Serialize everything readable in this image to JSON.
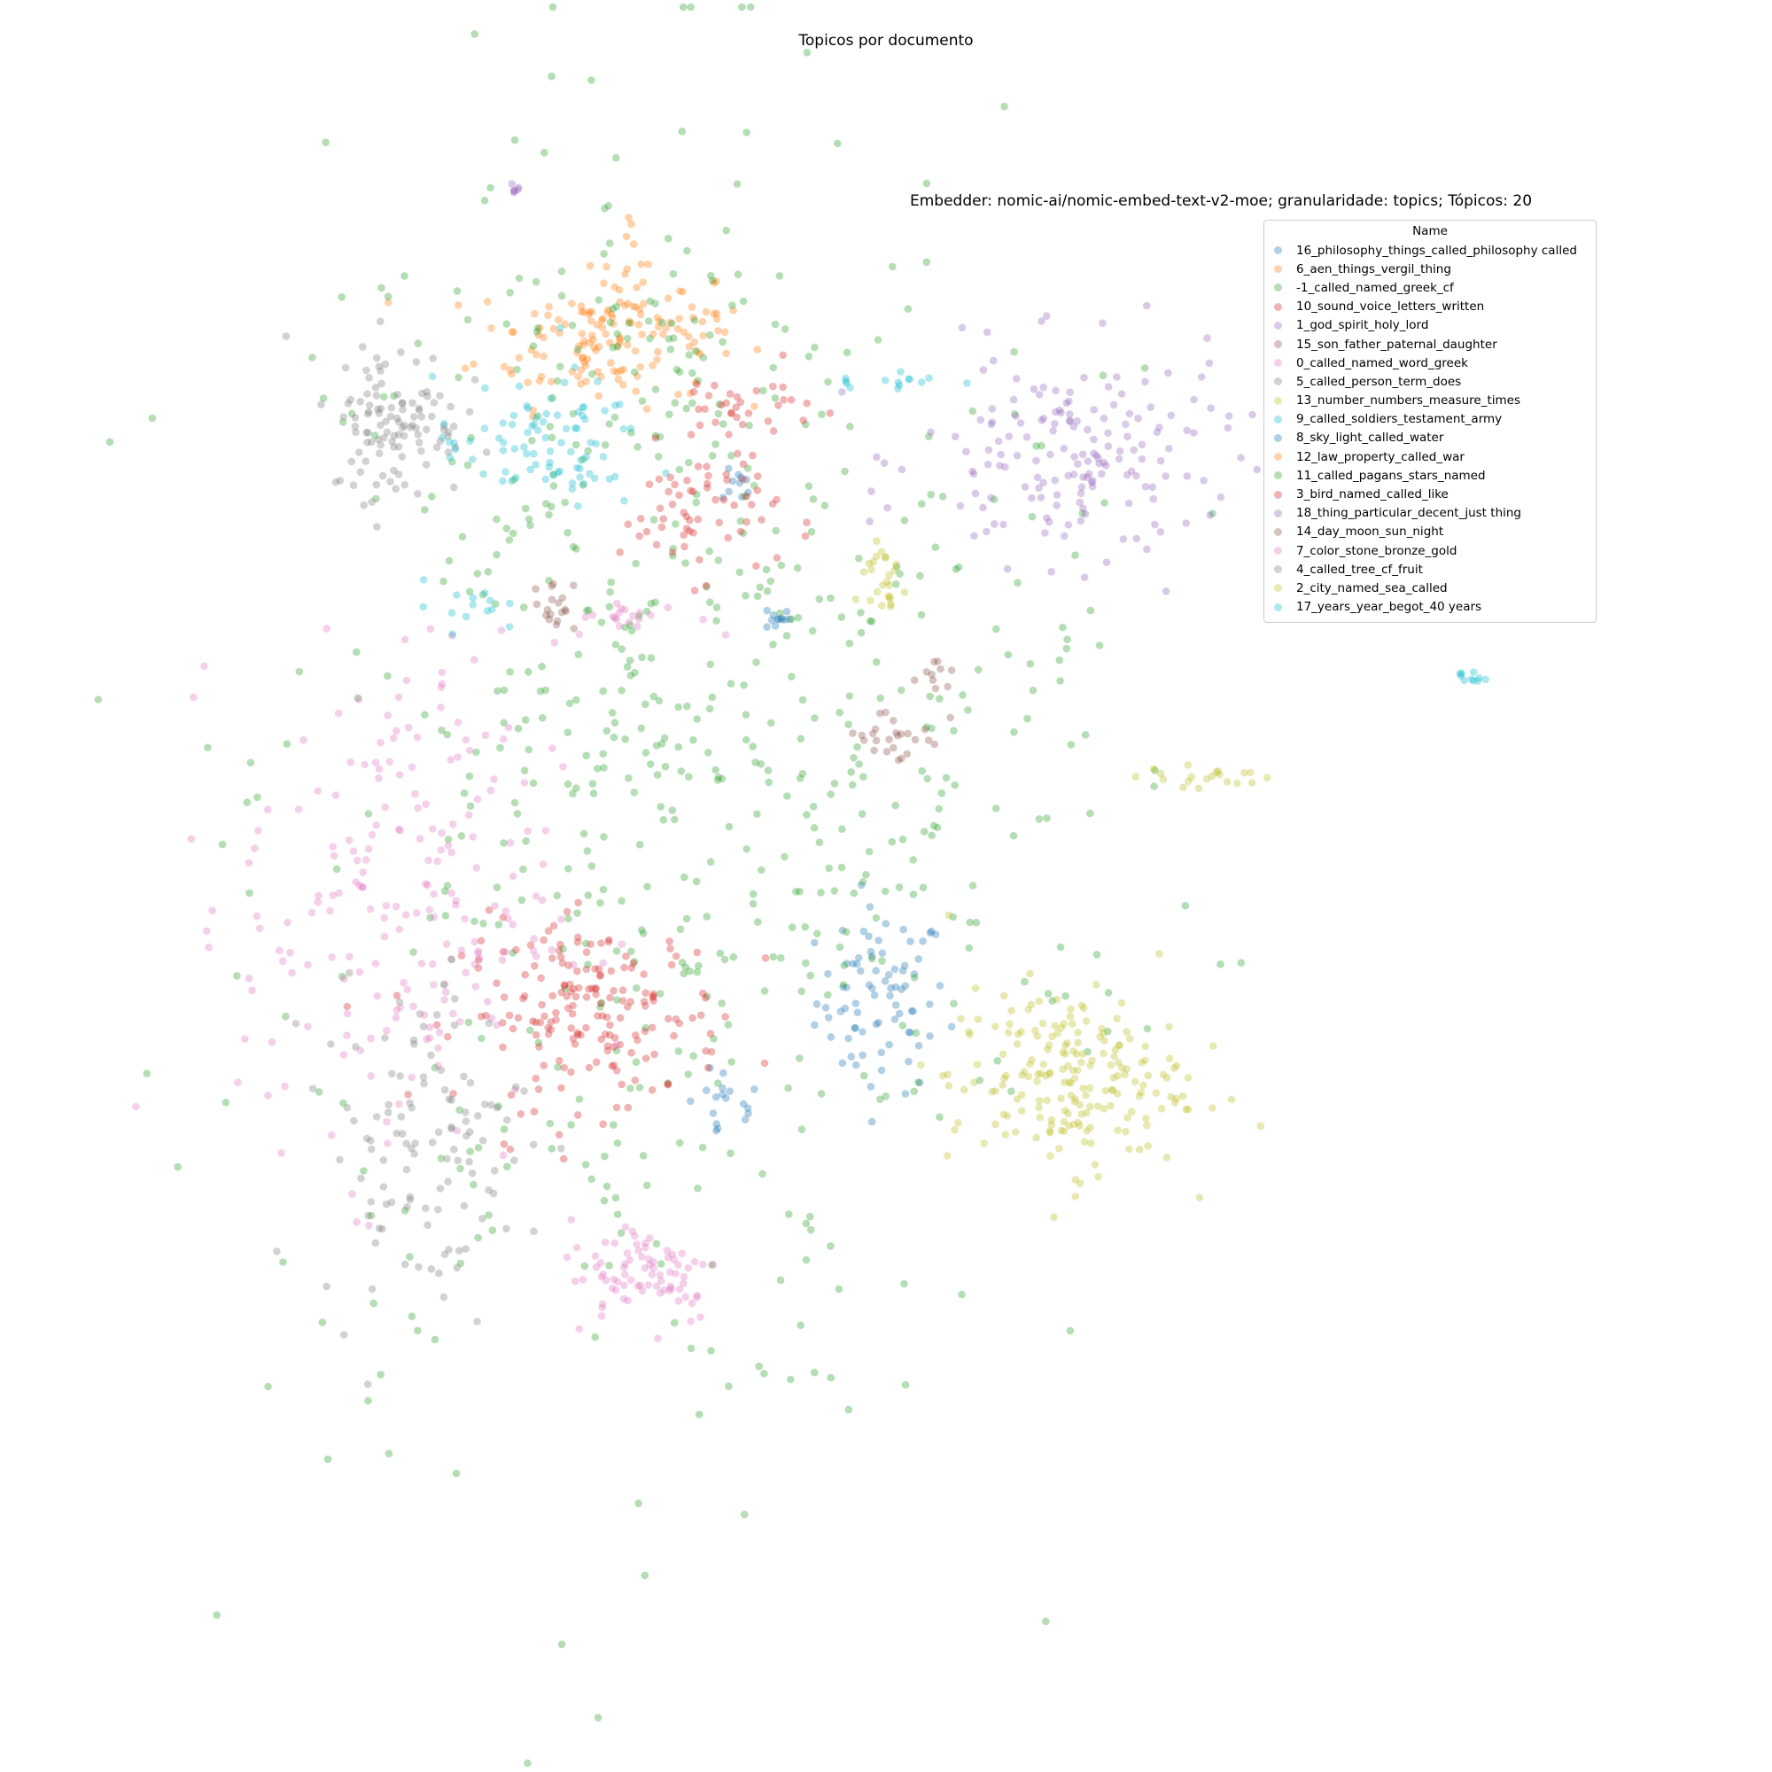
{
  "figure": {
    "suptitle": "Topicos por documento"
  },
  "chart_data": {
    "type": "scatter",
    "title": "Embedder: nomic-ai/nomic-embed-text-v2-moe; granularidade: topics; Tópicos: 20",
    "xlabel": "",
    "ylabel": "",
    "axes_visible": false,
    "grid": false,
    "legend_title": "Name",
    "legend_placement": "upper-right",
    "point_opacity": 0.35,
    "xlim": [
      0,
      100
    ],
    "ylim": [
      0,
      100
    ],
    "series": [
      {
        "name": "16_philosophy_things_called_philosophy called",
        "color": "#1f77b4",
        "clusters": [
          {
            "x": 47,
            "y": 43,
            "sx": 2.5,
            "sy": 3.5,
            "n": 80
          },
          {
            "x": 35,
            "y": 35,
            "sx": 1.5,
            "sy": 1.5,
            "n": 18
          },
          {
            "x": 36,
            "y": 82,
            "sx": 0.6,
            "sy": 0.6,
            "n": 10
          },
          {
            "x": 39,
            "y": 72,
            "sx": 0.5,
            "sy": 0.5,
            "n": 12
          }
        ]
      },
      {
        "name": "6_aen_things_vergil_thing",
        "color": "#ff7f0e",
        "clusters": [
          {
            "x": 25,
            "y": 93,
            "sx": 4.5,
            "sy": 2.5,
            "n": 120
          },
          {
            "x": 28,
            "y": 98,
            "sx": 0.7,
            "sy": 2.5,
            "n": 20
          },
          {
            "x": 33,
            "y": 94,
            "sx": 1.5,
            "sy": 1.5,
            "n": 18
          }
        ]
      },
      {
        "name": "-1_called_named_greek_cf",
        "color": "#2ca02c",
        "clusters": [
          {
            "x": 28,
            "y": 60,
            "sx": 14,
            "sy": 25,
            "n": 520
          },
          {
            "x": 47,
            "y": 60,
            "sx": 12,
            "sy": 15,
            "n": 140
          },
          {
            "x": 30,
            "y": 93,
            "sx": 6,
            "sy": 3,
            "n": 40
          }
        ]
      },
      {
        "name": "10_sound_voice_letters_written",
        "color": "#d62728",
        "clusters": [
          {
            "x": 25,
            "y": 42,
            "sx": 5,
            "sy": 3.5,
            "n": 180
          },
          {
            "x": 33,
            "y": 80,
            "sx": 3,
            "sy": 2.5,
            "n": 60
          },
          {
            "x": 36,
            "y": 88,
            "sx": 3,
            "sy": 1.5,
            "n": 35
          }
        ]
      },
      {
        "name": "1_god_spirit_holy_lord",
        "color": "#9467bd",
        "clusters": [
          {
            "x": 62,
            "y": 84,
            "sx": 6,
            "sy": 4,
            "n": 170
          },
          {
            "x": 19,
            "y": 104.5,
            "sx": 0.15,
            "sy": 0.2,
            "n": 6
          }
        ]
      },
      {
        "name": "15_son_father_paternal_daughter",
        "color": "#8c564b",
        "clusters": [
          {
            "x": 22,
            "y": 73,
            "sx": 0.8,
            "sy": 1,
            "n": 18
          },
          {
            "x": 48,
            "y": 63,
            "sx": 2,
            "sy": 1.2,
            "n": 25
          },
          {
            "x": 51,
            "y": 68.5,
            "sx": 0.6,
            "sy": 0.8,
            "n": 10
          }
        ]
      },
      {
        "name": "0_called_named_word_greek",
        "color": "#e377c2",
        "clusters": [
          {
            "x": 10,
            "y": 50,
            "sx": 6,
            "sy": 10,
            "n": 210
          },
          {
            "x": 29,
            "y": 22.5,
            "sx": 3,
            "sy": 2,
            "n": 80
          },
          {
            "x": 28,
            "y": 72,
            "sx": 2.5,
            "sy": 0.6,
            "n": 20
          }
        ]
      },
      {
        "name": "5_called_person_term_does",
        "color": "#7f7f7f",
        "clusters": [
          {
            "x": 10,
            "y": 87,
            "sx": 2.5,
            "sy": 3,
            "n": 110
          },
          {
            "x": 12,
            "y": 32,
            "sx": 4,
            "sy": 6,
            "n": 110
          }
        ]
      },
      {
        "name": "13_number_numbers_measure_times",
        "color": "#bcbd22",
        "clusters": [
          {
            "x": 61,
            "y": 37,
            "sx": 4.5,
            "sy": 3.5,
            "n": 200
          },
          {
            "x": 47,
            "y": 75,
            "sx": 1,
            "sy": 1.8,
            "n": 25
          },
          {
            "x": 72,
            "y": 60,
            "sx": 2.5,
            "sy": 0.4,
            "n": 20
          }
        ]
      },
      {
        "name": "9_called_soldiers_testament_army",
        "color": "#17becf",
        "clusters": [
          {
            "x": 21,
            "y": 85,
            "sx": 4,
            "sy": 2.5,
            "n": 85
          },
          {
            "x": 15,
            "y": 73,
            "sx": 1.5,
            "sy": 1,
            "n": 14
          },
          {
            "x": 92,
            "y": 67.5,
            "sx": 0.6,
            "sy": 0.25,
            "n": 10
          },
          {
            "x": 48,
            "y": 90,
            "sx": 2.5,
            "sy": 0.5,
            "n": 14
          }
        ]
      }
    ]
  },
  "legend": {
    "title": "Name",
    "items": [
      {
        "label": "16_philosophy_things_called_philosophy called",
        "color": "#1f77b4"
      },
      {
        "label": "6_aen_things_vergil_thing",
        "color": "#ff7f0e"
      },
      {
        "label": "-1_called_named_greek_cf",
        "color": "#2ca02c"
      },
      {
        "label": "10_sound_voice_letters_written",
        "color": "#d62728"
      },
      {
        "label": "1_god_spirit_holy_lord",
        "color": "#9467bd"
      },
      {
        "label": "15_son_father_paternal_daughter",
        "color": "#8c564b"
      },
      {
        "label": "0_called_named_word_greek",
        "color": "#e377c2"
      },
      {
        "label": "5_called_person_term_does",
        "color": "#7f7f7f"
      },
      {
        "label": "13_number_numbers_measure_times",
        "color": "#bcbd22"
      },
      {
        "label": "9_called_soldiers_testament_army",
        "color": "#17becf"
      },
      {
        "label": "8_sky_light_called_water",
        "color": "#1f77b4"
      },
      {
        "label": "12_law_property_called_war",
        "color": "#ff7f0e"
      },
      {
        "label": "11_called_pagans_stars_named",
        "color": "#2ca02c"
      },
      {
        "label": "3_bird_named_called_like",
        "color": "#d62728"
      },
      {
        "label": "18_thing_particular_decent_just thing",
        "color": "#9467bd"
      },
      {
        "label": "14_day_moon_sun_night",
        "color": "#8c564b"
      },
      {
        "label": "7_color_stone_bronze_gold",
        "color": "#e377c2"
      },
      {
        "label": "4_called_tree_cf_fruit",
        "color": "#7f7f7f"
      },
      {
        "label": "2_city_named_sea_called",
        "color": "#bcbd22"
      },
      {
        "label": "17_years_year_begot_40 years",
        "color": "#17becf"
      }
    ]
  }
}
